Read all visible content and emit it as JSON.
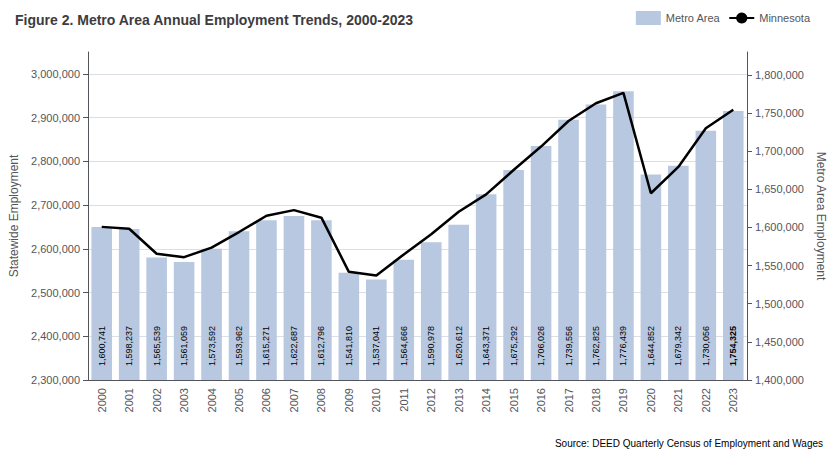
{
  "chart_data": {
    "type": "bar",
    "title": "Figure 2. Metro Area Annual Employment Trends, 2000-2023",
    "annotation": "Source: DEED Quarterly Census of Employment and Wages",
    "ylabel": "Statewide Employment",
    "y2label": "Metro Area Employment",
    "categories": [
      "2000",
      "2001",
      "2002",
      "2003",
      "2004",
      "2005",
      "2006",
      "2007",
      "2008",
      "2009",
      "2010",
      "2011",
      "2012",
      "2013",
      "2014",
      "2015",
      "2016",
      "2017",
      "2018",
      "2019",
      "2020",
      "2021",
      "2022",
      "2023"
    ],
    "series": [
      {
        "name": "Metro Area",
        "type": "bar",
        "color": "#b8c8e0",
        "values": [
          2650000,
          2645000,
          2580000,
          2570000,
          2600000,
          2640000,
          2665000,
          2675000,
          2665000,
          2545000,
          2530000,
          2575000,
          2615000,
          2655000,
          2725000,
          2780000,
          2835000,
          2895000,
          2930000,
          2960000,
          2770000,
          2790000,
          2870000,
          2915000
        ]
      },
      {
        "name": "Minnesota",
        "type": "line",
        "color": "#000000",
        "axis": "y2",
        "data_labels": true,
        "values": [
          1600741,
          1598237,
          1565539,
          1561059,
          1573592,
          1593962,
          1615271,
          1622687,
          1612796,
          1541810,
          1537041,
          1564666,
          1590978,
          1620612,
          1643371,
          1675292,
          1706026,
          1739556,
          1762825,
          1776439,
          1644852,
          1679342,
          1730056,
          1754325
        ],
        "value_labels": [
          "1,600,741",
          "1,598,237",
          "1,565,539",
          "1,561,059",
          "1,573,592",
          "1,593,962",
          "1,615,271",
          "1,622,687",
          "1,612,796",
          "1,541,810",
          "1,537,041",
          "1,564,666",
          "1,590,978",
          "1,620,612",
          "1,643,371",
          "1,675,292",
          "1,706,026",
          "1,739,556",
          "1,762,825",
          "1,776,439",
          "1,644,852",
          "1,679,342",
          "1,730,056",
          "1,754,325"
        ]
      }
    ],
    "ylim": [
      2300000,
      3050000
    ],
    "yticks": [
      {
        "value": 2300000,
        "label": "2,300,000"
      },
      {
        "value": 2400000,
        "label": "2,400,000"
      },
      {
        "value": 2500000,
        "label": "2,500,000"
      },
      {
        "value": 2600000,
        "label": "2,600,000"
      },
      {
        "value": 2700000,
        "label": "2,700,000"
      },
      {
        "value": 2800000,
        "label": "2,800,000"
      },
      {
        "value": 2900000,
        "label": "2,900,000"
      },
      {
        "value": 3000000,
        "label": "3,000,000"
      }
    ],
    "y2lim": [
      1400000,
      1830000
    ],
    "y2ticks": [
      {
        "value": 1400000,
        "label": "1,400,000"
      },
      {
        "value": 1450000,
        "label": "1,450,000"
      },
      {
        "value": 1500000,
        "label": "1,500,000"
      },
      {
        "value": 1550000,
        "label": "1,550,000"
      },
      {
        "value": 1600000,
        "label": "1,600,000"
      },
      {
        "value": 1650000,
        "label": "1,650,000"
      },
      {
        "value": 1700000,
        "label": "1,700,000"
      },
      {
        "value": 1750000,
        "label": "1,750,000"
      },
      {
        "value": 1800000,
        "label": "1,800,000"
      }
    ],
    "grid": true,
    "legend": "upper right"
  }
}
